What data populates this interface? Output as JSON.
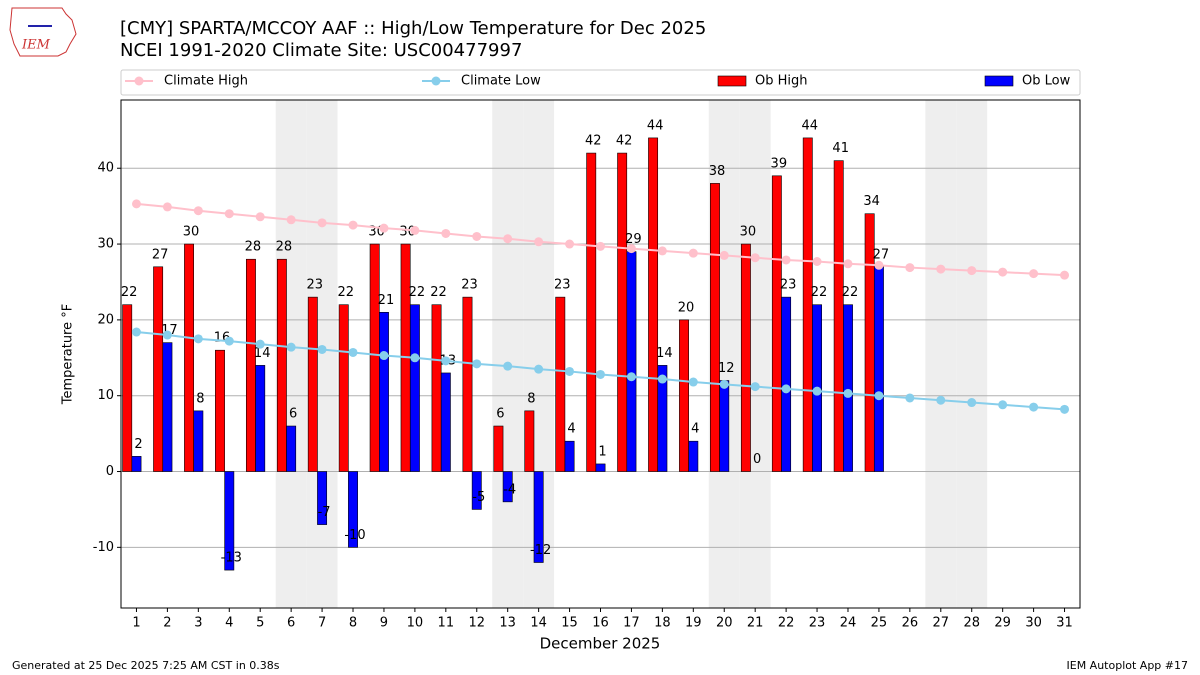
{
  "chart_data": {
    "type": "bar_line",
    "title": "[CMY] SPARTA/MCCOY AAF :: High/Low Temperature for Dec 2025",
    "subtitle": "NCEI 1991-2020 Climate Site: USC00477997",
    "xlabel": "December 2025",
    "ylabel": "Temperature °F",
    "logo_text": "IEM",
    "footer_left": "Generated at 25 Dec 2025 7:25 AM CST in 0.38s",
    "footer_right": "IEM Autoplot App #17",
    "x": [
      1,
      2,
      3,
      4,
      5,
      6,
      7,
      8,
      9,
      10,
      11,
      12,
      13,
      14,
      15,
      16,
      17,
      18,
      19,
      20,
      21,
      22,
      23,
      24,
      25,
      26,
      27,
      28,
      29,
      30,
      31
    ],
    "series": [
      {
        "name": "Climate High",
        "color": "#ffc0cb",
        "kind": "line",
        "values": [
          35.3,
          34.9,
          34.4,
          34.0,
          33.6,
          33.2,
          32.8,
          32.5,
          32.1,
          31.8,
          31.4,
          31.0,
          30.7,
          30.3,
          30.0,
          29.7,
          29.4,
          29.1,
          28.8,
          28.5,
          28.2,
          27.9,
          27.7,
          27.4,
          27.2,
          26.9,
          26.7,
          26.5,
          26.3,
          26.1,
          25.9
        ]
      },
      {
        "name": "Climate Low",
        "color": "#87ceeb",
        "kind": "line",
        "values": [
          18.4,
          18.0,
          17.5,
          17.2,
          16.8,
          16.4,
          16.1,
          15.7,
          15.3,
          15.0,
          14.6,
          14.2,
          13.9,
          13.5,
          13.2,
          12.8,
          12.5,
          12.2,
          11.8,
          11.5,
          11.2,
          10.9,
          10.6,
          10.3,
          10.0,
          9.7,
          9.4,
          9.1,
          8.8,
          8.5,
          8.2
        ]
      },
      {
        "name": "Ob High",
        "color": "#ff0000",
        "kind": "bar",
        "values": [
          22,
          27,
          30,
          16,
          28,
          28,
          23,
          22,
          30,
          30,
          22,
          23,
          6,
          8,
          23,
          42,
          42,
          44,
          20,
          38,
          30,
          39,
          44,
          41,
          34,
          null,
          null,
          null,
          null,
          null,
          null
        ]
      },
      {
        "name": "Ob Low",
        "color": "#0000ff",
        "kind": "bar",
        "values": [
          2,
          17,
          8,
          -13,
          14,
          6,
          -7,
          -10,
          21,
          22,
          13,
          -5,
          -4,
          -12,
          4,
          1,
          29,
          14,
          4,
          12,
          0,
          23,
          22,
          22,
          27,
          null,
          null,
          null,
          null,
          null,
          null
        ]
      }
    ],
    "shaded_days": [
      6,
      7,
      13,
      14,
      20,
      21,
      27,
      28
    ],
    "xlim": [
      0.5,
      31.5
    ],
    "xticks": [
      1,
      2,
      3,
      4,
      5,
      6,
      7,
      8,
      9,
      10,
      11,
      12,
      13,
      14,
      15,
      16,
      17,
      18,
      19,
      20,
      21,
      22,
      23,
      24,
      25,
      26,
      27,
      28,
      29,
      30,
      31
    ],
    "ylim": [
      -18,
      49
    ],
    "yticks": [
      -10,
      0,
      10,
      20,
      30,
      40
    ],
    "grid": true
  }
}
